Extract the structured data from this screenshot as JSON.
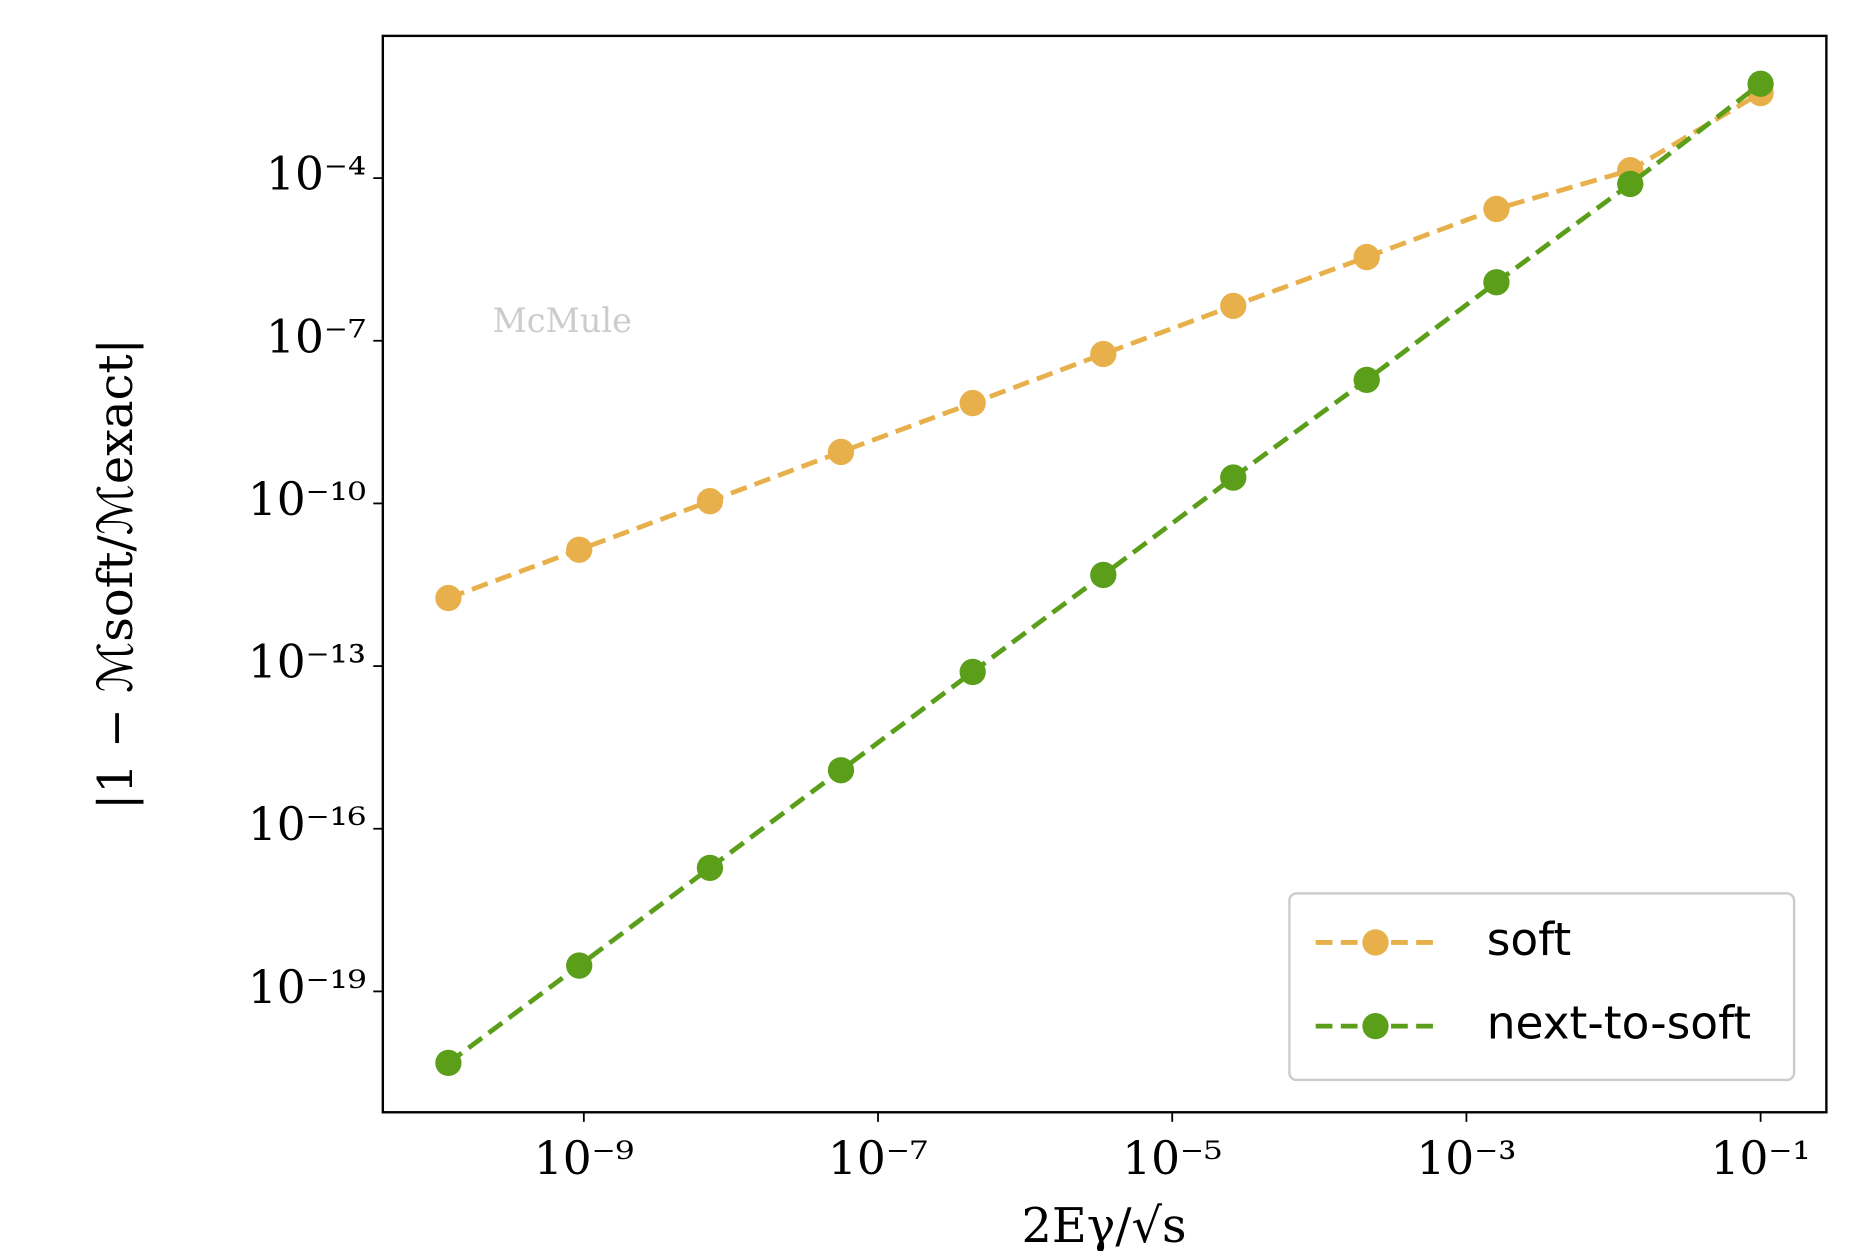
{
  "chart_data": {
    "type": "line",
    "log_x": true,
    "log_y": true,
    "line_style": "dashed",
    "marker": "circle",
    "x_label": "2Eγ/√s",
    "y_label": "|1 − ℳsoft/ℳexact|",
    "annotation": "McMule",
    "legend_loc": "lower right",
    "x": [
      1.2e-10,
      9.3e-10,
      7.2e-09,
      5.6e-08,
      4.4e-07,
      3.4e-06,
      2.6e-05,
      0.00021,
      0.0016,
      0.013,
      0.1
    ],
    "series": [
      {
        "name": "soft",
        "color": "#e8b04a",
        "values": [
          1.8e-12,
          1.4e-11,
          1.1e-10,
          8.9e-10,
          7.1e-09,
          5.7e-08,
          4.4e-07,
          3.5e-06,
          2.7e-05,
          0.00014,
          0.0037
        ]
      },
      {
        "name": "next-to-soft",
        "color": "#5a9e1a",
        "values": [
          4.8e-21,
          3e-19,
          1.9e-17,
          1.2e-15,
          7.8e-14,
          4.8e-12,
          3e-10,
          1.9e-08,
          1.2e-06,
          7.8e-05,
          0.0055
        ]
      }
    ],
    "xlim": [
      4.3e-11,
      0.28
    ],
    "ylim": [
      5.9e-22,
      0.042
    ],
    "xticks": [
      {
        "value": 1e-09,
        "label": "10⁻⁹"
      },
      {
        "value": 1e-07,
        "label": "10⁻⁷"
      },
      {
        "value": 1e-05,
        "label": "10⁻⁵"
      },
      {
        "value": 0.001,
        "label": "10⁻³"
      },
      {
        "value": 0.1,
        "label": "10⁻¹"
      }
    ],
    "yticks": [
      {
        "value": 1e-19,
        "label": "10⁻¹⁹"
      },
      {
        "value": 1e-16,
        "label": "10⁻¹⁶"
      },
      {
        "value": 1e-13,
        "label": "10⁻¹³"
      },
      {
        "value": 1e-10,
        "label": "10⁻¹⁰"
      },
      {
        "value": 1e-07,
        "label": "10⁻⁷"
      },
      {
        "value": 0.0001,
        "label": "10⁻⁴"
      }
    ]
  }
}
